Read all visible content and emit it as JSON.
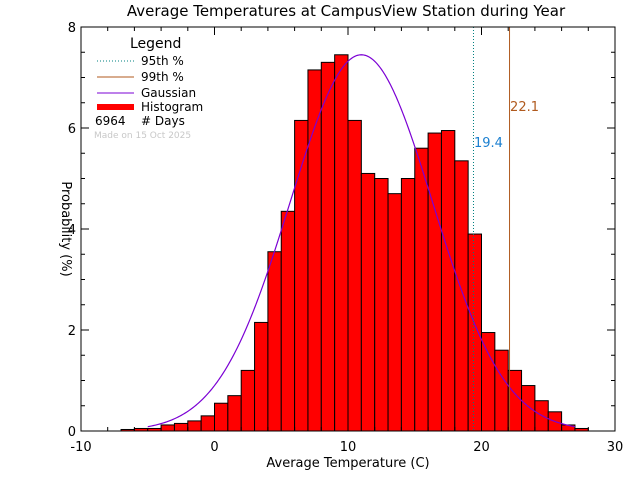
{
  "chart_data": {
    "type": "bar",
    "title": "Average Temperatures at CampusView Station during Year",
    "xlabel": "Average Temperature (C)",
    "ylabel": "Probability (%)",
    "xlim": [
      -10,
      30
    ],
    "ylim": [
      0,
      8
    ],
    "xticks": [
      "-10",
      "0",
      "10",
      "20",
      "30"
    ],
    "yticks": [
      "0",
      "2",
      "4",
      "6",
      "8"
    ],
    "bin_width": 1,
    "bins_x": [
      -7,
      -6,
      -5,
      -4,
      -3,
      -2,
      -1,
      0,
      1,
      2,
      3,
      4,
      5,
      6,
      7,
      8,
      9,
      10,
      11,
      12,
      13,
      14,
      15,
      16,
      17,
      18,
      19,
      20,
      21,
      22,
      23,
      24,
      25,
      26,
      27
    ],
    "histogram_values": [
      0.03,
      0.05,
      0.05,
      0.12,
      0.15,
      0.2,
      0.3,
      0.55,
      0.7,
      1.2,
      2.15,
      3.55,
      4.35,
      6.15,
      7.15,
      7.3,
      7.45,
      6.15,
      5.1,
      5.0,
      4.7,
      5.0,
      5.6,
      5.9,
      5.95,
      5.35,
      3.9,
      1.95,
      1.6,
      1.2,
      0.9,
      0.6,
      0.38,
      0.12,
      0.05
    ],
    "gaussian": {
      "mean": 11.0,
      "sd": 5.35,
      "peak": 7.45,
      "x_range": [
        -5,
        27
      ]
    },
    "lines": [
      {
        "name": "95th %",
        "x": 19.4,
        "label": "19.4",
        "style": "dotted",
        "color": "#008080",
        "label_color": "#1a7fd0"
      },
      {
        "name": "99th %",
        "x": 22.1,
        "label": "22.1",
        "style": "solid",
        "color": "#b05a1e",
        "label_color": "#b05a1e"
      }
    ],
    "legend": {
      "title": "Legend",
      "position": "top-left",
      "entries": [
        {
          "label": "95th %",
          "style": "dotted",
          "color": "#008080"
        },
        {
          "label": "99th %",
          "style": "solid",
          "color": "#b05a1e"
        },
        {
          "label": "Gaussian",
          "style": "solid",
          "color": "#7b00d4"
        },
        {
          "label": "Histogram",
          "style": "thick",
          "color": "#ff0000"
        }
      ],
      "count_value": "6964",
      "count_label": "# Days",
      "made_on": "Made on 15 Oct 2025"
    },
    "colors": {
      "histogram_fill": "#ff0000",
      "histogram_edge": "#000000",
      "gaussian": "#7b00d4",
      "axis": "#000000"
    }
  }
}
